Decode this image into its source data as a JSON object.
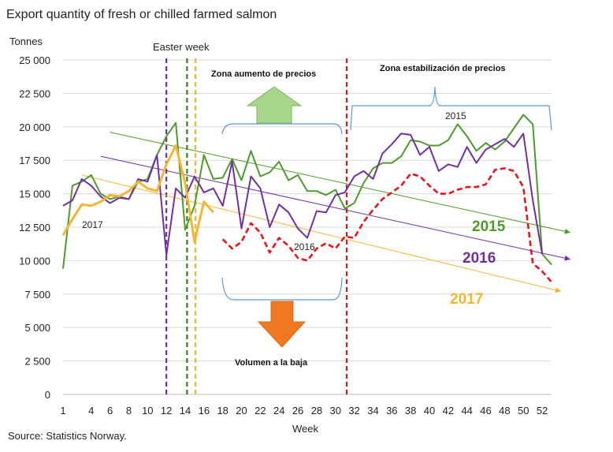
{
  "chart_data": {
    "type": "line",
    "title": "Export quantity of fresh or chilled farmed salmon",
    "ylabel": "Tonnes",
    "xlabel": "Week",
    "source": "Source: Statistics Norway.",
    "ylim": [
      0,
      25000
    ],
    "xlim": [
      1,
      53
    ],
    "y_ticks": [
      0,
      2500,
      5000,
      7500,
      10000,
      12500,
      15000,
      17500,
      20000,
      22500,
      25000
    ],
    "y_tick_labels": [
      "0",
      "2 500",
      "5 000",
      "7 500",
      "10 000",
      "12 500",
      "15 000",
      "17 500",
      "20 000",
      "22 500",
      "25 000"
    ],
    "x_ticks": [
      1,
      4,
      6,
      8,
      10,
      12,
      14,
      16,
      18,
      20,
      22,
      24,
      26,
      28,
      30,
      32,
      34,
      36,
      38,
      40,
      42,
      44,
      46,
      48,
      50,
      52
    ],
    "grid": "horizontal",
    "series": [
      {
        "name": "2015",
        "color": "#4f9a2a",
        "x": [
          1,
          2,
          3,
          4,
          5,
          6,
          7,
          8,
          9,
          10,
          11,
          12,
          13,
          14,
          15,
          16,
          17,
          18,
          19,
          20,
          21,
          22,
          23,
          24,
          25,
          26,
          27,
          28,
          29,
          30,
          31,
          32,
          33,
          34,
          35,
          36,
          37,
          38,
          39,
          40,
          41,
          42,
          43,
          44,
          45,
          46,
          47,
          48,
          49,
          50,
          51,
          52,
          53
        ],
        "values": [
          9400,
          15600,
          15900,
          16400,
          15000,
          14600,
          14800,
          14600,
          15900,
          16100,
          17900,
          19300,
          20300,
          12300,
          14100,
          17900,
          16100,
          16200,
          17600,
          16000,
          18200,
          16300,
          16600,
          17400,
          16000,
          16400,
          15200,
          15200,
          14900,
          15300,
          13900,
          14300,
          15800,
          16900,
          17300,
          17300,
          17800,
          19000,
          18900,
          18600,
          18600,
          19000,
          20200,
          19300,
          18200,
          18800,
          18300,
          18900,
          19900,
          20900,
          20200,
          10500,
          9700
        ]
      },
      {
        "name": "2016",
        "color": "#7030a0",
        "x": [
          1,
          2,
          3,
          4,
          5,
          6,
          7,
          8,
          9,
          10,
          11,
          12,
          13,
          14,
          15,
          16,
          17,
          18,
          19,
          20,
          21,
          22,
          23,
          24,
          25,
          26,
          27,
          28,
          29,
          30,
          31,
          32,
          33,
          34,
          35,
          36,
          37,
          38,
          39,
          40,
          41,
          42,
          43,
          44,
          45,
          46,
          47,
          48,
          49,
          50,
          51,
          52
        ],
        "values": [
          14100,
          14500,
          16100,
          15600,
          14800,
          14300,
          14700,
          14600,
          16100,
          15900,
          17900,
          10400,
          15400,
          14700,
          16300,
          15100,
          15400,
          14100,
          17400,
          12400,
          16300,
          15400,
          12500,
          14200,
          13600,
          12400,
          11700,
          13700,
          13600,
          14900,
          15100,
          16300,
          16700,
          16100,
          18000,
          18700,
          19500,
          19400,
          17900,
          18500,
          16700,
          17200,
          17000,
          18500,
          17300,
          18300,
          18700,
          19100,
          18500,
          19500,
          14500,
          10500
        ]
      },
      {
        "name": "2017",
        "color": "#f2b632",
        "x": [
          1,
          2,
          3,
          4,
          5,
          6,
          7,
          8,
          9,
          10,
          11,
          12,
          13,
          14,
          15,
          16,
          17
        ],
        "values": [
          11900,
          13100,
          14200,
          14100,
          14400,
          14900,
          14800,
          15200,
          15900,
          15400,
          15200,
          17200,
          18600,
          15800,
          11400,
          14400,
          13600
        ]
      }
    ],
    "trend_lines": [
      {
        "name": "2015",
        "color": "#4f9a2a",
        "from": [
          6,
          19600
        ],
        "to": [
          55,
          12100
        ]
      },
      {
        "name": "2016",
        "color": "#7030a0",
        "from": [
          5,
          17800
        ],
        "to": [
          55,
          10100
        ]
      },
      {
        "name": "2017",
        "color": "#f2b632",
        "from": [
          3,
          16400
        ],
        "to": [
          54,
          7700
        ]
      }
    ],
    "projection": {
      "color": "#e8141b",
      "x": [
        18,
        19,
        20,
        21,
        22,
        23,
        24,
        25,
        26,
        27,
        28,
        29,
        30,
        31,
        32,
        33,
        34,
        35,
        36,
        37,
        38,
        39,
        40,
        41,
        42,
        43,
        44,
        45,
        46,
        47,
        48,
        49,
        50,
        51,
        52,
        53
      ],
      "values": [
        11600,
        10900,
        11400,
        12800,
        12100,
        10600,
        11700,
        11100,
        10200,
        10000,
        10900,
        11300,
        10900,
        11800,
        11700,
        12900,
        13800,
        14600,
        15100,
        15600,
        16500,
        16300,
        15600,
        15000,
        15000,
        15300,
        15500,
        15500,
        15700,
        16800,
        16900,
        16700,
        15500,
        9800,
        9200,
        8400
      ]
    },
    "vertical_lines": [
      {
        "x": 12,
        "color": "#7030a0"
      },
      {
        "x": 14.2,
        "color": "#3a7d1e"
      },
      {
        "x": 15.1,
        "color": "#f2b632"
      },
      {
        "x": 31.2,
        "color": "#e8141b"
      }
    ],
    "annotations": {
      "easter": "Easter week",
      "zone_up": "Zona aumento de precios",
      "zone_stable": "Zona estabilización  de precios",
      "volume_down": "Volumen a la baja",
      "label_2015_small": "2015",
      "label_2016_small": "2016",
      "label_2017_small": "2017",
      "legend_2015": "2015",
      "legend_2016": "2016",
      "legend_2017": "2017"
    },
    "colors": {
      "arrow_up": "#9bd07a",
      "arrow_down": "#f07822",
      "brace": "#5b9bd5"
    }
  }
}
